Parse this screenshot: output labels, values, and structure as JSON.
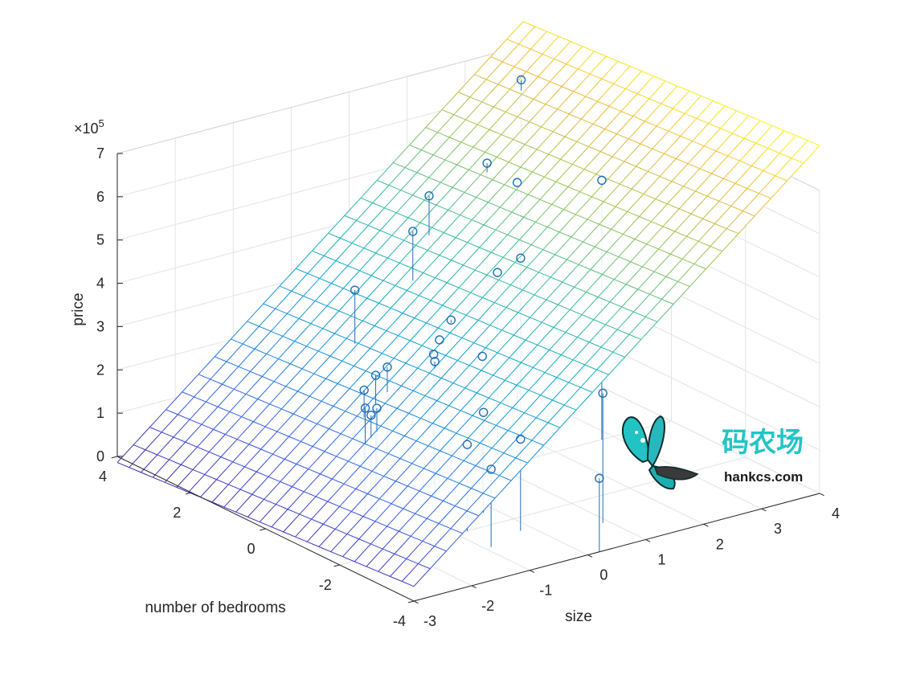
{
  "chart_data": {
    "type": "surface+stem3",
    "xlabel": "size",
    "ylabel": "number of bedrooms",
    "zlabel": "price",
    "exponent_label": "×10",
    "exponent_power": "5",
    "xlim": [
      -3,
      4
    ],
    "ylim": [
      -4,
      4
    ],
    "zlim": [
      0,
      700000
    ],
    "x_ticks": [
      "-3",
      "-2",
      "-1",
      "0",
      "1",
      "2",
      "3",
      "4"
    ],
    "y_ticks": [
      "-4",
      "-2",
      "0",
      "2",
      "4"
    ],
    "z_ticks": [
      "0",
      "1",
      "2",
      "3",
      "4",
      "5",
      "6",
      "7"
    ],
    "grid": true,
    "surface": {
      "type": "plane",
      "intercept": 340000,
      "slope_size": 110000,
      "slope_bedrooms": -6000,
      "size_range": [
        -3,
        4
      ],
      "bedrooms_range": [
        -4,
        4
      ],
      "colormap": "parula"
    },
    "points": [
      {
        "size": 3.2,
        "bedrooms": 2.8,
        "price": 699900
      },
      {
        "size": 2.8,
        "bedrooms": 0.0,
        "price": 599000
      },
      {
        "size": 2.3,
        "bedrooms": 1.5,
        "price": 549000
      },
      {
        "size": 2.1,
        "bedrooms": 2.0,
        "price": 579900
      },
      {
        "size": 1.4,
        "bedrooms": 0.0,
        "price": 469000
      },
      {
        "size": 1.1,
        "bedrooms": 2.0,
        "price": 539900
      },
      {
        "size": 1.0,
        "bedrooms": 0.0,
        "price": 449900
      },
      {
        "size": 0.5,
        "bedrooms": 1.5,
        "price": 499998
      },
      {
        "size": 0.2,
        "bedrooms": 0.0,
        "price": 368500
      },
      {
        "size": 0.0,
        "bedrooms": 0.0,
        "price": 329900
      },
      {
        "size": -0.5,
        "bedrooms": 1.5,
        "price": 399900
      },
      {
        "size": -0.4,
        "bedrooms": -0.5,
        "price": 314900
      },
      {
        "size": -0.2,
        "bedrooms": -1.5,
        "price": 232000
      },
      {
        "size": -0.1,
        "bedrooms": 0.0,
        "price": 299900
      },
      {
        "size": 0.1,
        "bedrooms": -1.0,
        "price": 329999
      },
      {
        "size": -0.2,
        "bedrooms": -2.5,
        "price": 212000
      },
      {
        "size": -0.9,
        "bedrooms": 0.0,
        "price": 299000
      },
      {
        "size": -1.1,
        "bedrooms": 0.0,
        "price": 287000
      },
      {
        "size": -1.3,
        "bedrooms": 0.0,
        "price": 259900
      },
      {
        "size": -1.4,
        "bedrooms": -0.5,
        "price": 242500
      },
      {
        "size": -1.5,
        "bedrooms": -0.5,
        "price": 229900
      },
      {
        "size": -1.6,
        "bedrooms": -0.5,
        "price": 249900
      },
      {
        "size": -0.8,
        "bedrooms": -2.0,
        "price": 199900
      },
      {
        "size": -0.9,
        "bedrooms": -2.8,
        "price": 179900
      },
      {
        "size": 0.9,
        "bedrooms": -3.0,
        "price": 299900
      },
      {
        "size": 0.2,
        "bedrooms": -4.0,
        "price": 169900
      }
    ]
  },
  "watermark": {
    "title_cn": "码农场",
    "site": "hankcs.com"
  }
}
